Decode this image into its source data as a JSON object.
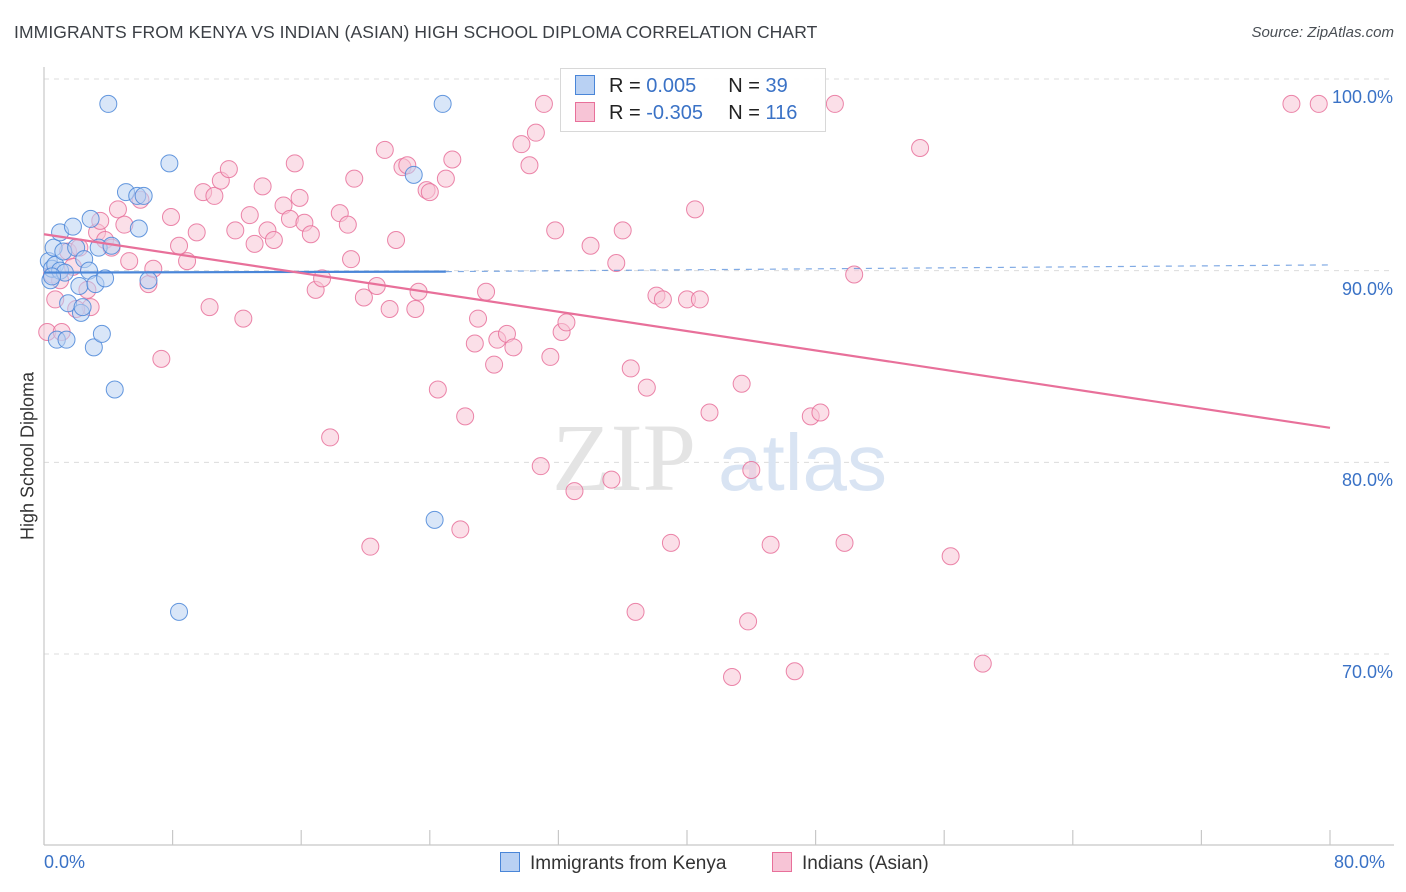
{
  "title": "IMMIGRANTS FROM KENYA VS INDIAN (ASIAN) HIGH SCHOOL DIPLOMA CORRELATION CHART",
  "source": "Source: ZipAtlas.com",
  "watermark": {
    "zip": "ZIP",
    "atlas": "atlas"
  },
  "colors": {
    "blue": "#4a86d8",
    "pink": "#e8709a",
    "blue_fill": "#b9d1f3",
    "pink_fill": "#f7c4d6",
    "axis_text": "#3a72c6"
  },
  "legend": {
    "rows": [
      {
        "r_label": "R = ",
        "r_value": "0.005",
        "n_label": "N = ",
        "n_value": "39"
      },
      {
        "r_label": "R = ",
        "r_value": "-0.305",
        "n_label": "N = ",
        "n_value": "116"
      }
    ]
  },
  "chart_data": {
    "type": "scatter",
    "title": "IMMIGRANTS FROM KENYA VS INDIAN (ASIAN) HIGH SCHOOL DIPLOMA CORRELATION CHART",
    "xlabel": "",
    "ylabel": "High School Diploma",
    "x_tick_labels": [
      "0.0%",
      "80.0%"
    ],
    "y_tick_labels": [
      "100.0%",
      "90.0%",
      "80.0%",
      "70.0%"
    ],
    "y_ticks": [
      100,
      90,
      80,
      70
    ],
    "xlim": [
      0,
      80
    ],
    "ylim": [
      60,
      100.7
    ],
    "grid": "horizontal dashed",
    "series": [
      {
        "name": "Immigrants from Kenya",
        "color": "#4a86d8",
        "trend": {
          "x0": 0,
          "y0": 89.9,
          "x1": 25,
          "y1": 89.95,
          "x_dashed_end": 80,
          "y_dashed_end": 90.3
        },
        "points": [
          [
            0.3,
            90.5
          ],
          [
            0.4,
            89.5
          ],
          [
            0.5,
            90.1
          ],
          [
            0.6,
            91.2
          ],
          [
            0.7,
            90.3
          ],
          [
            0.8,
            86.4
          ],
          [
            1.0,
            92.0
          ],
          [
            1.0,
            90.0
          ],
          [
            1.2,
            91.0
          ],
          [
            1.3,
            89.9
          ],
          [
            1.4,
            86.4
          ],
          [
            1.5,
            88.3
          ],
          [
            1.8,
            92.3
          ],
          [
            2.0,
            91.2
          ],
          [
            2.2,
            89.2
          ],
          [
            2.3,
            87.8
          ],
          [
            2.5,
            90.6
          ],
          [
            2.8,
            90.0
          ],
          [
            2.9,
            92.7
          ],
          [
            3.1,
            86.0
          ],
          [
            3.2,
            89.3
          ],
          [
            3.4,
            91.2
          ],
          [
            3.6,
            86.7
          ],
          [
            3.8,
            89.6
          ],
          [
            4.0,
            98.7
          ],
          [
            4.2,
            91.3
          ],
          [
            4.4,
            83.8
          ],
          [
            5.1,
            94.1
          ],
          [
            5.8,
            93.9
          ],
          [
            5.9,
            92.2
          ],
          [
            6.5,
            89.5
          ],
          [
            7.8,
            95.6
          ],
          [
            8.4,
            72.2
          ],
          [
            6.2,
            93.9
          ],
          [
            23.0,
            95.0
          ],
          [
            24.3,
            77.0
          ],
          [
            24.8,
            98.7
          ],
          [
            0.5,
            89.7
          ],
          [
            2.4,
            88.1
          ]
        ]
      },
      {
        "name": "Indians (Asian)",
        "color": "#e8709a",
        "trend": {
          "x0": 0,
          "y0": 91.9,
          "x1": 80,
          "y1": 81.8
        },
        "points": [
          [
            0.2,
            86.8
          ],
          [
            0.5,
            89.8
          ],
          [
            0.7,
            88.5
          ],
          [
            1.0,
            89.5
          ],
          [
            1.5,
            91.0
          ],
          [
            1.8,
            90.2
          ],
          [
            2.2,
            91.2
          ],
          [
            2.7,
            89.0
          ],
          [
            2.9,
            88.1
          ],
          [
            3.3,
            92.0
          ],
          [
            3.5,
            92.6
          ],
          [
            3.8,
            91.6
          ],
          [
            4.2,
            91.2
          ],
          [
            4.6,
            93.2
          ],
          [
            5.0,
            92.4
          ],
          [
            5.3,
            90.5
          ],
          [
            6.0,
            93.7
          ],
          [
            6.5,
            89.3
          ],
          [
            6.8,
            90.1
          ],
          [
            7.3,
            85.4
          ],
          [
            7.9,
            92.8
          ],
          [
            8.4,
            91.3
          ],
          [
            8.9,
            90.5
          ],
          [
            9.5,
            92.0
          ],
          [
            9.9,
            94.1
          ],
          [
            10.3,
            88.1
          ],
          [
            10.6,
            93.9
          ],
          [
            11.0,
            94.7
          ],
          [
            11.5,
            95.3
          ],
          [
            11.9,
            92.1
          ],
          [
            12.4,
            87.5
          ],
          [
            12.8,
            92.9
          ],
          [
            13.1,
            91.4
          ],
          [
            13.6,
            94.4
          ],
          [
            13.9,
            92.1
          ],
          [
            14.3,
            91.6
          ],
          [
            14.9,
            93.4
          ],
          [
            15.3,
            92.7
          ],
          [
            15.6,
            95.6
          ],
          [
            15.9,
            93.8
          ],
          [
            16.2,
            92.5
          ],
          [
            16.6,
            91.9
          ],
          [
            16.9,
            89.0
          ],
          [
            17.3,
            89.6
          ],
          [
            17.8,
            81.3
          ],
          [
            18.4,
            93.0
          ],
          [
            18.9,
            92.4
          ],
          [
            19.1,
            90.6
          ],
          [
            19.3,
            94.8
          ],
          [
            19.9,
            88.6
          ],
          [
            20.3,
            75.6
          ],
          [
            20.7,
            89.2
          ],
          [
            21.2,
            96.3
          ],
          [
            21.5,
            88.0
          ],
          [
            21.9,
            91.6
          ],
          [
            22.3,
            95.4
          ],
          [
            22.6,
            95.5
          ],
          [
            23.1,
            88.0
          ],
          [
            23.3,
            88.9
          ],
          [
            23.8,
            94.2
          ],
          [
            24.0,
            94.1
          ],
          [
            24.5,
            83.8
          ],
          [
            25.0,
            94.8
          ],
          [
            25.4,
            95.8
          ],
          [
            25.9,
            76.5
          ],
          [
            26.2,
            82.4
          ],
          [
            26.8,
            86.2
          ],
          [
            27.0,
            87.5
          ],
          [
            27.5,
            88.9
          ],
          [
            28.0,
            85.1
          ],
          [
            28.2,
            86.4
          ],
          [
            28.8,
            86.7
          ],
          [
            29.2,
            86.0
          ],
          [
            29.7,
            96.6
          ],
          [
            30.2,
            95.5
          ],
          [
            30.6,
            97.2
          ],
          [
            30.9,
            79.8
          ],
          [
            31.1,
            98.7
          ],
          [
            31.5,
            85.5
          ],
          [
            31.8,
            92.1
          ],
          [
            32.2,
            86.8
          ],
          [
            32.5,
            87.3
          ],
          [
            33.0,
            78.5
          ],
          [
            34.0,
            91.3
          ],
          [
            35.3,
            79.1
          ],
          [
            35.6,
            90.4
          ],
          [
            36.0,
            92.1
          ],
          [
            36.5,
            84.9
          ],
          [
            36.8,
            72.2
          ],
          [
            37.5,
            83.9
          ],
          [
            38.1,
            88.7
          ],
          [
            38.5,
            88.5
          ],
          [
            39.0,
            75.8
          ],
          [
            40.0,
            88.5
          ],
          [
            40.5,
            93.2
          ],
          [
            40.8,
            88.5
          ],
          [
            41.4,
            82.6
          ],
          [
            42.8,
            68.8
          ],
          [
            43.4,
            84.1
          ],
          [
            43.8,
            71.7
          ],
          [
            44.0,
            79.6
          ],
          [
            45.2,
            75.7
          ],
          [
            46.7,
            69.1
          ],
          [
            47.7,
            82.4
          ],
          [
            48.3,
            82.6
          ],
          [
            49.2,
            98.7
          ],
          [
            49.8,
            75.8
          ],
          [
            50.4,
            89.8
          ],
          [
            54.5,
            96.4
          ],
          [
            56.4,
            75.1
          ],
          [
            58.4,
            69.5
          ],
          [
            77.6,
            98.7
          ],
          [
            79.3,
            98.7
          ],
          [
            1.1,
            86.8
          ],
          [
            2.0,
            88.0
          ]
        ]
      }
    ]
  },
  "bottom_legend": [
    "Immigrants from Kenya",
    "Indians (Asian)"
  ]
}
